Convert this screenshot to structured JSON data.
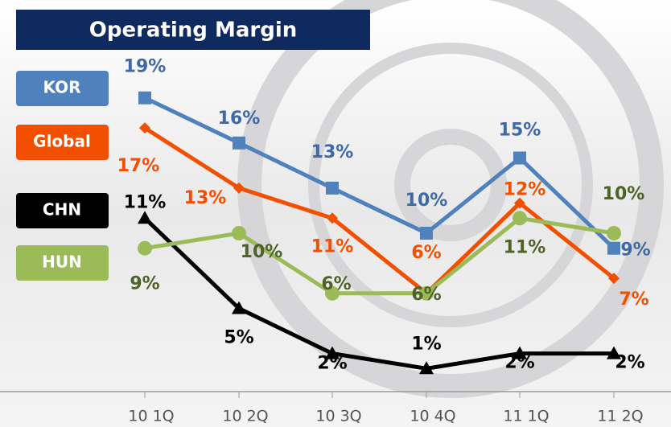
{
  "chart_data": {
    "type": "line",
    "title": "Operating Margin",
    "categories": [
      "10 1Q",
      "10 2Q",
      "10 3Q",
      "10 4Q",
      "11 1Q",
      "11 2Q"
    ],
    "ylim": [
      0,
      20
    ],
    "series": [
      {
        "name": "KOR",
        "color": "#4f81bd",
        "label_color": "#3f68a6",
        "marker": "square",
        "values": [
          19,
          16,
          13,
          10,
          15,
          9
        ],
        "value_labels": [
          "19%",
          "16%",
          "13%",
          "10%",
          "15%",
          "9%"
        ]
      },
      {
        "name": "Global",
        "color": "#f24f00",
        "label_color": "#f24f00",
        "marker": "diamond",
        "values": [
          17,
          13,
          11,
          6,
          12,
          7
        ],
        "value_labels": [
          "17%",
          "13%",
          "11%",
          "6%",
          "12%",
          "7%"
        ]
      },
      {
        "name": "CHN",
        "color": "#000000",
        "label_color": "#000000",
        "marker": "triangle",
        "values": [
          11,
          5,
          2,
          1,
          2,
          2
        ],
        "value_labels": [
          "11%",
          "5%",
          "2%",
          "1%",
          "2%",
          "2%"
        ]
      },
      {
        "name": "HUN",
        "color": "#9bbb59",
        "label_color": "#4f6228",
        "marker": "circle",
        "values": [
          9,
          10,
          6,
          6,
          11,
          10
        ],
        "value_labels": [
          "9%",
          "10%",
          "6%",
          "6%",
          "11%",
          "10%"
        ]
      }
    ]
  }
}
